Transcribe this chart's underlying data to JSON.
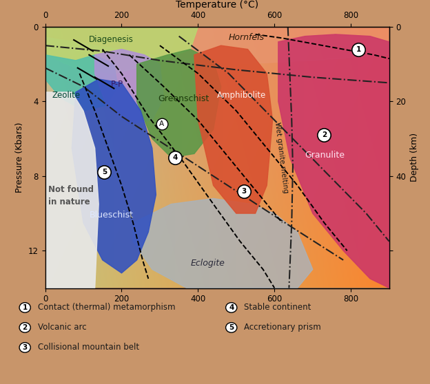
{
  "xlabel_top": "Temperature (°C)",
  "ylabel_left": "Pressure (Kbars)",
  "ylabel_right": "Depth (km)",
  "xlim": [
    0,
    900
  ],
  "ylim": [
    14,
    0
  ],
  "xticks": [
    0,
    200,
    400,
    600,
    800
  ],
  "yticks_left": [
    0,
    4,
    8,
    12
  ],
  "depth_ticks": {
    "0": "0",
    "4": "20",
    "8": "40",
    "12": ""
  },
  "background_color": "#c8956a",
  "facies_colors": {
    "Diagenesis": "#b8d870",
    "Hornfels": "#e8956e",
    "Zeolite": "#55c0a8",
    "PP": "#b090d8",
    "Greenschist": "#5a9848",
    "Blueschist": "#3050c0",
    "Amphibolite": "#d85030",
    "Granulite": "#cc3868",
    "Eclogite": "#a8b4c0",
    "not_found": "#e8e8e8"
  },
  "legend_items_left": [
    {
      "num": "1",
      "text": "Contact (thermal) metamorphism"
    },
    {
      "num": "2",
      "text": "Volcanic arc"
    },
    {
      "num": "3",
      "text": "Collisional mountain belt"
    }
  ],
  "legend_items_right": [
    {
      "num": "4",
      "text": "Stable continent"
    },
    {
      "num": "5",
      "text": "Accretionary prism"
    }
  ]
}
